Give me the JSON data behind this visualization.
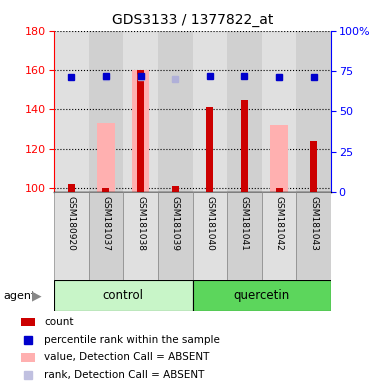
{
  "title": "GDS3133 / 1377822_at",
  "samples": [
    "GSM180920",
    "GSM181037",
    "GSM181038",
    "GSM181039",
    "GSM181040",
    "GSM181041",
    "GSM181042",
    "GSM181043"
  ],
  "red_bars": [
    102,
    100,
    160,
    101,
    141,
    145,
    100,
    124
  ],
  "pink_bars": [
    null,
    133,
    160,
    null,
    null,
    null,
    132,
    null
  ],
  "blue_squares_pct": [
    71,
    72,
    72,
    null,
    72,
    72,
    71.5,
    71.5
  ],
  "purple_squares_pct": [
    null,
    71.5,
    71,
    70,
    null,
    null,
    71.5,
    null
  ],
  "ylim_left": [
    98,
    180
  ],
  "ylim_right": [
    0,
    100
  ],
  "yticks_left": [
    100,
    120,
    140,
    160,
    180
  ],
  "yticks_right": [
    0,
    25,
    50,
    75,
    100
  ],
  "yticklabels_right": [
    "0",
    "25",
    "50",
    "75",
    "100%"
  ],
  "control_color_light": "#c8f5c8",
  "control_color_dark": "#5cd65c",
  "quercetin_color_light": "#c8f5c8",
  "quercetin_color_dark": "#5cd65c",
  "col_bg_even": "#e0e0e0",
  "col_bg_odd": "#d0d0d0",
  "legend_items": [
    {
      "type": "rect",
      "color": "#cc0000",
      "label": "count"
    },
    {
      "type": "square",
      "color": "#0000cc",
      "label": "percentile rank within the sample"
    },
    {
      "type": "rect",
      "color": "#ffb0b0",
      "label": "value, Detection Call = ABSENT"
    },
    {
      "type": "square",
      "color": "#c0c0e0",
      "label": "rank, Detection Call = ABSENT"
    }
  ]
}
